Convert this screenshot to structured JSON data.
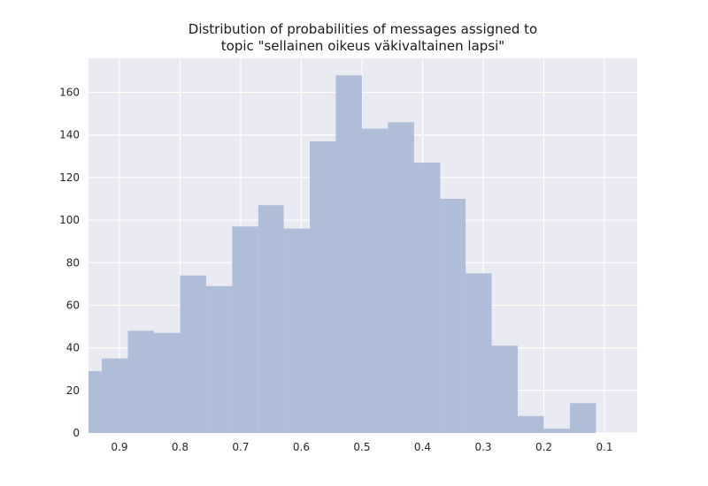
{
  "chart_data": {
    "type": "bar",
    "title_lines": [
      "Distribution of probabilities of messages assigned to",
      "topic \"sellainen oikeus väkivaltainen lapsi\""
    ],
    "xlabel": "",
    "ylabel": "",
    "x_axis_inverted": true,
    "xlim": [
      0.951,
      0.046
    ],
    "ylim": [
      0,
      176
    ],
    "x_ticks": [
      0.9,
      0.8,
      0.7,
      0.6,
      0.5,
      0.4,
      0.3,
      0.2,
      0.1
    ],
    "x_tick_labels": [
      "0.9",
      "0.8",
      "0.7",
      "0.6",
      "0.5",
      "0.4",
      "0.3",
      "0.2",
      "0.1"
    ],
    "y_ticks": [
      0,
      20,
      40,
      60,
      80,
      100,
      120,
      140,
      160
    ],
    "y_tick_labels": [
      "0",
      "20",
      "40",
      "60",
      "80",
      "100",
      "120",
      "140",
      "160"
    ],
    "bin_edges": [
      0.951,
      0.929,
      0.886,
      0.843,
      0.8,
      0.757,
      0.714,
      0.671,
      0.629,
      0.586,
      0.543,
      0.5,
      0.457,
      0.414,
      0.371,
      0.329,
      0.286,
      0.243,
      0.2,
      0.157,
      0.114
    ],
    "counts": [
      29,
      35,
      48,
      47,
      74,
      69,
      97,
      107,
      96,
      137,
      168,
      143,
      146,
      127,
      110,
      75,
      41,
      8,
      2,
      14
    ],
    "bar_color": "#a8b8d6",
    "background_color": "#eaeaf2",
    "grid": true,
    "grid_color": "#ffffff"
  }
}
